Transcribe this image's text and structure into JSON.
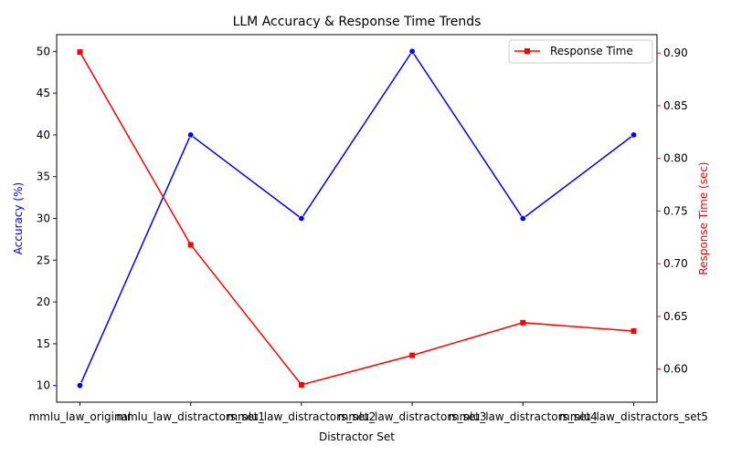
{
  "chart_data": {
    "type": "line",
    "title": "LLM Accuracy & Response Time Trends",
    "xlabel": "Distractor Set",
    "ylabel_left": "Accuracy (%)",
    "ylabel_right": "Response Time (sec)",
    "categories": [
      "mmlu_law_original",
      "mmlu_law_distractors_set1",
      "mmlu_law_distractors_set2",
      "mmlu_law_distractors_set3",
      "mmlu_law_distractors_set4",
      "mmlu_law_distractors_set5"
    ],
    "series": [
      {
        "axis": "left",
        "color": "#0000ff",
        "marker": "circle",
        "values": [
          10,
          40,
          30,
          50,
          30,
          40
        ]
      },
      {
        "name": "Response Time",
        "axis": "right",
        "color": "#ff0000",
        "marker": "square",
        "values": [
          0.901,
          0.718,
          0.585,
          0.613,
          0.644,
          0.636
        ]
      }
    ],
    "ylim_left": [
      8,
      52
    ],
    "ylim_right": [
      0.5685,
      0.9175
    ],
    "yticks_left": [
      10,
      15,
      20,
      25,
      30,
      35,
      40,
      45,
      50
    ],
    "yticks_right": [
      0.6,
      0.65,
      0.7,
      0.75,
      0.8,
      0.85,
      0.9
    ],
    "grid": false,
    "legend_position": "upper-right",
    "legend_entries": [
      "Response Time"
    ],
    "left_axis_color": "#0000ff",
    "right_axis_color": "#ff0000"
  }
}
